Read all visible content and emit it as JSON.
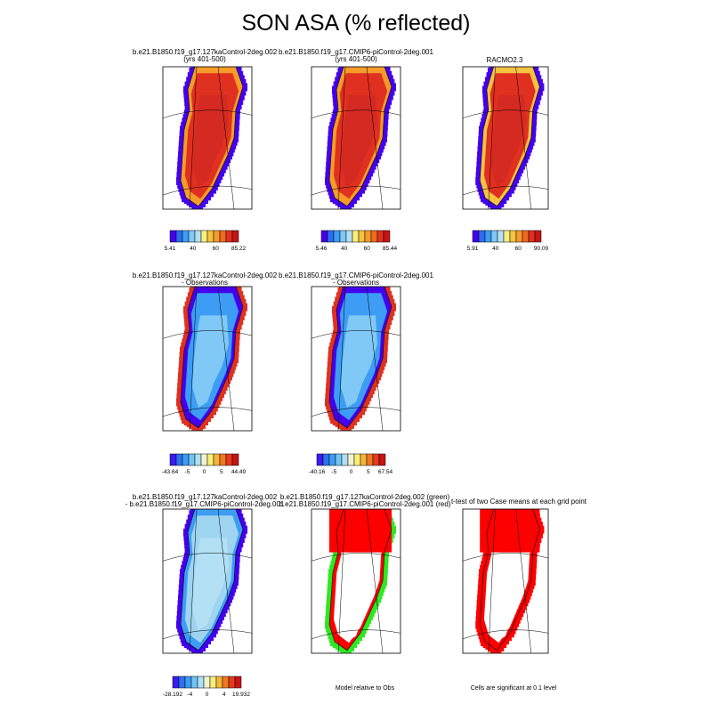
{
  "title": "SON ASA (% reflected)",
  "palettes": {
    "full": [
      "#4400ee",
      "#2b6cf0",
      "#3d9df5",
      "#80c8f5",
      "#b3e0f5",
      "#f7ef7a",
      "#f5c242",
      "#f59b2a",
      "#f06a20",
      "#e03020",
      "#c81414"
    ],
    "diff": [
      "#3b1cf0",
      "#2f70f0",
      "#3e9cf5",
      "#74c2f2",
      "#aee0f5",
      "#f2f2d0",
      "#f7ef7a",
      "#f5b43a",
      "#f07a22",
      "#e63a20",
      "#c81414"
    ],
    "sig": [
      "#2ee81e",
      "#ff0000"
    ]
  },
  "panels": [
    {
      "id": "p1",
      "title": [
        "b.e21.B1850.f19_g17.127kaControl-2deg.002",
        "(yrs 401-500)"
      ],
      "colorbar": {
        "labels": [
          "5.41",
          "40",
          "60",
          "85.22"
        ],
        "palette": "full"
      }
    },
    {
      "id": "p2",
      "title": [
        "b.e21.B1850.f19_g17.CMIP6-piControl-2deg.001",
        "(yrs 401-500)"
      ],
      "colorbar": {
        "labels": [
          "5.46",
          "40",
          "60",
          "85.44"
        ],
        "palette": "full"
      }
    },
    {
      "id": "p3",
      "title": [
        "RACMO2.3"
      ],
      "colorbar": {
        "labels": [
          "5.91",
          "40",
          "60",
          "90.09"
        ],
        "palette": "full"
      }
    },
    {
      "id": "p4",
      "title": [
        "b.e21.B1850.f19_g17.127kaControl-2deg.002",
        "- Observations"
      ],
      "colorbar": {
        "labels": [
          "-43.64",
          "-5",
          "0",
          "5",
          "44.49"
        ],
        "palette": "diff"
      }
    },
    {
      "id": "p5",
      "title": [
        "b.e21.B1850.f19_g17.CMIP6-piControl-2deg.001",
        "- Observations"
      ],
      "colorbar": {
        "labels": [
          "-40.16",
          "-5",
          "0",
          "5",
          "67.54"
        ],
        "palette": "diff"
      }
    },
    {
      "id": "p7",
      "title": [
        "b.e21.B1850.f19_g17.127kaControl-2deg.002",
        "- b.e21.B1850.f19_g17.CMIP6-piControl-2deg.001"
      ],
      "colorbar": {
        "labels": [
          "-28.192",
          "-4",
          "0",
          "4",
          "19.932"
        ],
        "palette": "diff"
      }
    },
    {
      "id": "p8",
      "title": [
        "b.e21.B1850.f19_g17.127kaControl-2deg.002 (green)",
        "b.e21.B1850.f19_g17.CMIP6-piControl-2deg.001 (red)"
      ],
      "note": "Model relative to Obs"
    },
    {
      "id": "p9",
      "title": [
        "t-test of two Case means at each grid point"
      ],
      "note": "Cells are significant at 0.1 level"
    }
  ],
  "chart_data": [
    {
      "type": "heatmap",
      "title": "b.e21.B1850.f19_g17.127kaControl-2deg.002 (yrs 401-500)",
      "legend_labels": [
        "5.41",
        "40",
        "60",
        "85.22"
      ],
      "field": "SON ASA",
      "range": [
        5.41,
        85.22
      ]
    },
    {
      "type": "heatmap",
      "title": "b.e21.B1850.f19_g17.CMIP6-piControl-2deg.001 (yrs 401-500)",
      "legend_labels": [
        "5.46",
        "40",
        "60",
        "85.44"
      ],
      "field": "SON ASA",
      "range": [
        5.46,
        85.44
      ]
    },
    {
      "type": "heatmap",
      "title": "RACMO2.3",
      "legend_labels": [
        "5.91",
        "40",
        "60",
        "90.09"
      ],
      "field": "SON ASA",
      "range": [
        5.91,
        90.09
      ]
    },
    {
      "type": "heatmap",
      "title": "b.e21.B1850.f19_g17.127kaControl-2deg.002 - Observations",
      "legend_labels": [
        "-43.64",
        "-5",
        "0",
        "5",
        "44.49"
      ],
      "range": [
        -43.64,
        44.49
      ]
    },
    {
      "type": "heatmap",
      "title": "b.e21.B1850.f19_g17.CMIP6-piControl-2deg.001 - Observations",
      "legend_labels": [
        "-40.16",
        "-5",
        "0",
        "5",
        "67.54"
      ],
      "range": [
        -40.16,
        67.54
      ]
    },
    {
      "type": "heatmap",
      "title": "b.e21.B1850.f19_g17.127kaControl-2deg.002 - b.e21.B1850.f19_g17.CMIP6-piControl-2deg.001",
      "legend_labels": [
        "-28.192",
        "-4",
        "0",
        "4",
        "19.932"
      ],
      "range": [
        -28.192,
        19.932
      ]
    },
    {
      "type": "heatmap",
      "title": "b.e21.B1850.f19_g17.127kaControl-2deg.002 (green) b.e21.B1850.f19_g17.CMIP6-piControl-2deg.001 (red)",
      "annotation": "Model relative to Obs"
    },
    {
      "type": "heatmap",
      "title": "t-test of two Case means at each grid point",
      "annotation": "Cells are significant at 0.1 level"
    }
  ]
}
